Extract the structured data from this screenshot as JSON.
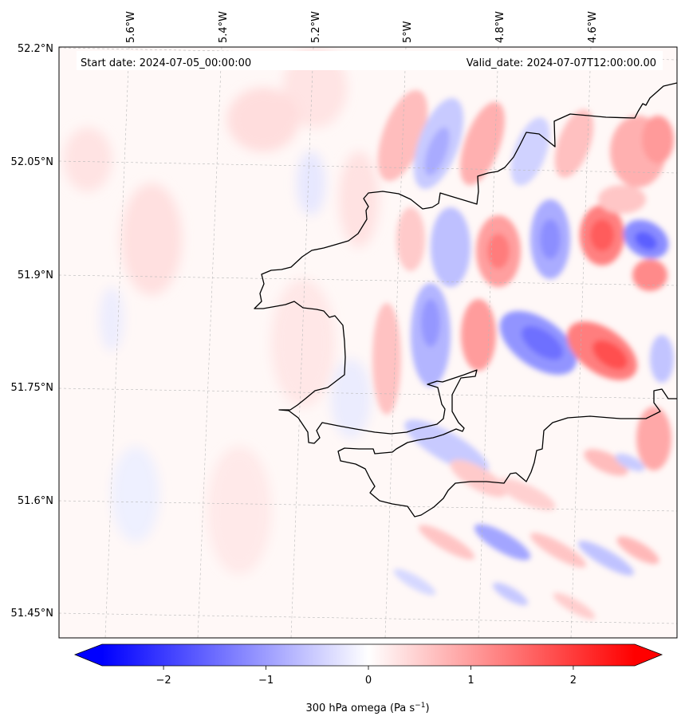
{
  "map": {
    "start_date": "Start date: 2024-07-05_00:00:00",
    "valid_date": "Valid_date: 2024-07-07T12:00:00.00",
    "lon_labels": [
      "5.6°W",
      "5.4°W",
      "5.2°W",
      "5°W",
      "4.8°W",
      "4.6°W"
    ],
    "lat_labels": [
      "52.2°N",
      "52.05°N",
      "51.9°N",
      "51.75°N",
      "51.6°N",
      "51.45°N"
    ],
    "colormap": "bwr",
    "gridlines": true,
    "coastline": true,
    "field": {
      "variable": "300 hPa omega",
      "positive_color": "#ff0000",
      "negative_color": "#0000ff",
      "neutral_color": "#ffffff",
      "features": [
        {
          "type": "negative",
          "lon": -4.48,
          "lat": 51.95,
          "value": -1.2
        },
        {
          "type": "positive",
          "lon": -4.58,
          "lat": 51.96,
          "value": 1.0
        },
        {
          "type": "positive",
          "lon": -4.58,
          "lat": 51.81,
          "value": 1.0
        },
        {
          "type": "negative",
          "lon": -4.72,
          "lat": 51.82,
          "value": -0.8
        },
        {
          "type": "positive",
          "lon": -4.79,
          "lat": 51.93,
          "value": 0.6
        },
        {
          "type": "negative",
          "lon": -4.68,
          "lat": 51.93,
          "value": -0.6
        },
        {
          "type": "negative",
          "lon": -4.92,
          "lat": 52.06,
          "value": -0.6
        },
        {
          "type": "positive",
          "lon": -4.84,
          "lat": 52.05,
          "value": 0.5
        },
        {
          "type": "negative",
          "lon": -4.92,
          "lat": 51.83,
          "value": -0.5
        },
        {
          "type": "positive",
          "lon": -4.82,
          "lat": 51.83,
          "value": 0.4
        },
        {
          "type": "negative",
          "lon": -4.75,
          "lat": 51.52,
          "value": -0.4
        }
      ]
    }
  },
  "colorbar": {
    "label": "300 hPa omega (Pa s",
    "label_exp": "−1",
    "label_close": ")",
    "ticks": [
      "−2",
      "−1",
      "0",
      "1",
      "2"
    ],
    "tick_values": [
      -2,
      -1,
      0,
      1,
      2
    ],
    "range": [
      -2.6,
      2.6
    ],
    "extend": "both"
  }
}
